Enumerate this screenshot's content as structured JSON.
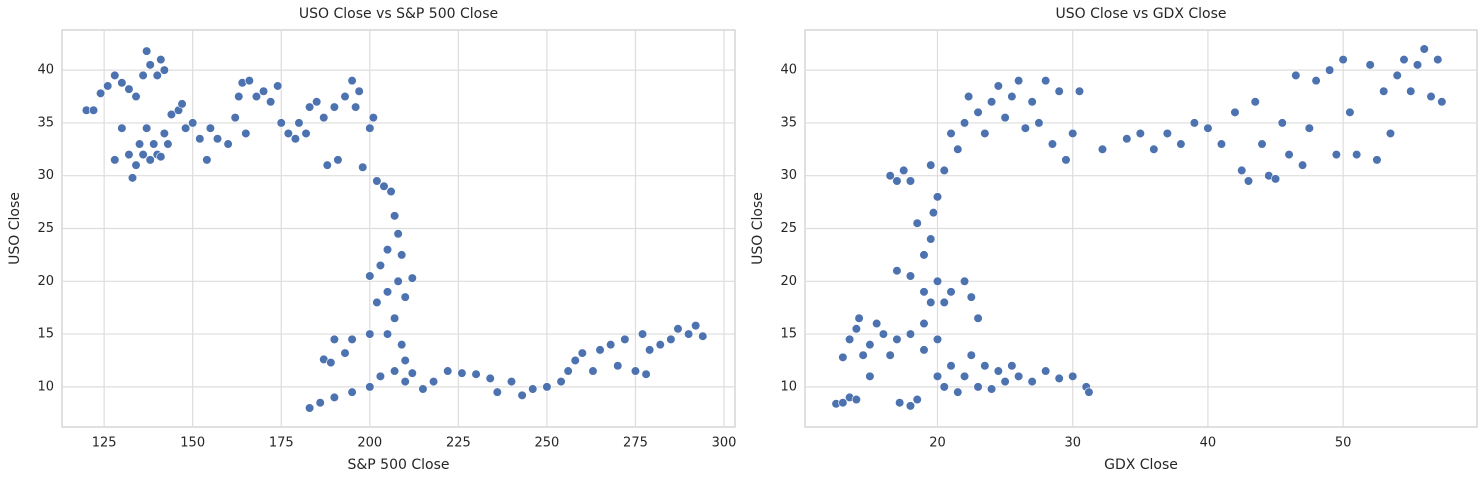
{
  "chart_data": [
    {
      "type": "scatter",
      "title": "USO Close vs S&P 500 Close",
      "x_label": "S&P 500 Close",
      "y_label": "USO Close",
      "color": "#4c72b0",
      "grid": true,
      "xlim": [
        113.1,
        303.1
      ],
      "ylim": [
        6.2,
        43.8
      ],
      "xticks": [
        125,
        150,
        175,
        200,
        225,
        250,
        275,
        300
      ],
      "yticks": [
        10,
        15,
        20,
        25,
        30,
        35,
        40
      ],
      "x": [
        120,
        122,
        124,
        126,
        128,
        130,
        132,
        134,
        136,
        137,
        138,
        140,
        141,
        142,
        128,
        130,
        132,
        133,
        134,
        135,
        136,
        137,
        138,
        139,
        140,
        141,
        142,
        143,
        144,
        146,
        147,
        148,
        150,
        152,
        154,
        155,
        157,
        160,
        162,
        163,
        164,
        165,
        166,
        168,
        170,
        172,
        174,
        175,
        177,
        179,
        180,
        182,
        183,
        185,
        187,
        188,
        190,
        191,
        193,
        195,
        196,
        197,
        198,
        200,
        201,
        202,
        204,
        206,
        207,
        208,
        209,
        205,
        203,
        200,
        202,
        205,
        208,
        210,
        212,
        207,
        209,
        210,
        205,
        200,
        195,
        190,
        187,
        189,
        193,
        183,
        186,
        190,
        195,
        200,
        203,
        207,
        210,
        212,
        215,
        218,
        222,
        226,
        230,
        234,
        236,
        240,
        243,
        246,
        250,
        254,
        256,
        258,
        260,
        263,
        265,
        268,
        270,
        272,
        275,
        277,
        279,
        282,
        285,
        287,
        290,
        292,
        294,
        278
      ],
      "y": [
        36.2,
        36.2,
        37.8,
        38.5,
        39.5,
        38.8,
        38.2,
        37.5,
        39.5,
        41.8,
        40.5,
        39.5,
        41,
        40,
        31.5,
        34.5,
        32,
        29.8,
        31,
        33,
        32,
        34.5,
        31.5,
        33,
        32,
        31.8,
        34,
        33,
        35.8,
        36.2,
        36.8,
        34.5,
        35,
        33.5,
        31.5,
        34.5,
        33.5,
        33,
        35.5,
        37.5,
        38.8,
        34,
        39,
        37.5,
        38,
        37,
        38.5,
        35,
        34,
        33.5,
        35,
        34,
        36.5,
        37,
        35.5,
        31,
        36.5,
        31.5,
        37.5,
        39,
        36.5,
        38,
        30.8,
        34.5,
        35.5,
        29.5,
        29,
        28.5,
        26.2,
        24.5,
        22.5,
        23,
        21.5,
        20.5,
        18,
        19,
        20,
        18.5,
        20.3,
        16.5,
        14,
        12.5,
        15,
        15,
        14.5,
        14.5,
        12.6,
        12.3,
        13.2,
        8,
        8.5,
        9,
        9.5,
        10,
        11,
        11.5,
        10.5,
        11.3,
        9.8,
        10.5,
        11.5,
        11.3,
        11.2,
        10.8,
        9.5,
        10.5,
        9.2,
        9.8,
        10,
        10.5,
        11.5,
        12.5,
        13.2,
        11.5,
        13.5,
        14,
        12,
        14.5,
        11.5,
        15,
        13.5,
        14,
        14.5,
        15.5,
        15,
        15.8,
        14.8,
        11.2
      ]
    },
    {
      "type": "scatter",
      "title": "USO Close vs GDX Close",
      "x_label": "GDX Close",
      "y_label": "USO Close",
      "color": "#4c72b0",
      "grid": true,
      "xlim": [
        10.2,
        59.9
      ],
      "ylim": [
        6.2,
        43.8
      ],
      "xticks": [
        20,
        30,
        40,
        50
      ],
      "yticks": [
        10,
        15,
        20,
        25,
        30,
        35,
        40
      ],
      "x": [
        12.5,
        13,
        13.5,
        14,
        13,
        13.5,
        14,
        14.2,
        14.5,
        15,
        15,
        15.5,
        16,
        16.5,
        17,
        17.2,
        18,
        18.5,
        16.5,
        17,
        17.5,
        18,
        18.5,
        19,
        19.5,
        19.7,
        17,
        18,
        19,
        20,
        20.5,
        21,
        22,
        22.5,
        23,
        18,
        19,
        19.5,
        20,
        19,
        20,
        20.5,
        21,
        21.5,
        22,
        22.5,
        23,
        23.5,
        24,
        24.5,
        25,
        25.5,
        26,
        27,
        28,
        29,
        30,
        31,
        31.2,
        20,
        19.5,
        20.5,
        21,
        21.5,
        22,
        22.3,
        23,
        23.5,
        24,
        24.5,
        25,
        25.5,
        26,
        26.5,
        27,
        27.5,
        28,
        28.5,
        29,
        29.5,
        30,
        30.5,
        32.2,
        34,
        35,
        36,
        37,
        38,
        39,
        40,
        41,
        42,
        42.5,
        43,
        43.5,
        44,
        44.5,
        45,
        45.5,
        46,
        46.5,
        47,
        47.5,
        48,
        49,
        49.5,
        50,
        50.5,
        51,
        52,
        52.5,
        53,
        53.5,
        54,
        54.5,
        55,
        55.5,
        56,
        56.5,
        57,
        57.3
      ],
      "y": [
        8.4,
        8.5,
        9,
        8.8,
        12.8,
        14.5,
        15.5,
        16.5,
        13,
        11,
        14,
        16,
        15,
        13,
        14.5,
        8.5,
        8.2,
        8.8,
        30,
        29.5,
        30.5,
        29.5,
        25.5,
        22.5,
        24,
        26.5,
        21,
        20.5,
        19,
        20,
        18,
        19,
        20,
        18.5,
        16.5,
        15,
        16,
        18,
        14.5,
        13.5,
        11,
        10,
        12,
        9.5,
        11,
        13,
        10,
        12,
        9.8,
        11.5,
        10.5,
        12,
        11,
        10.5,
        11.5,
        10.8,
        11,
        10,
        9.5,
        28,
        31,
        30.5,
        34,
        32.5,
        35,
        37.5,
        36,
        34,
        37,
        38.5,
        35.5,
        37.5,
        39,
        34.5,
        37,
        35,
        39,
        33,
        38,
        31.5,
        34,
        38,
        32.5,
        33.5,
        34,
        32.5,
        34,
        33,
        35,
        34.5,
        33,
        36,
        30.5,
        29.5,
        37,
        33,
        30,
        29.7,
        35,
        32,
        39.5,
        31,
        34.5,
        39,
        40,
        32,
        41,
        36,
        32,
        40.5,
        31.5,
        38,
        34,
        39.5,
        41,
        38,
        40.5,
        42,
        37.5,
        41,
        37
      ]
    }
  ]
}
